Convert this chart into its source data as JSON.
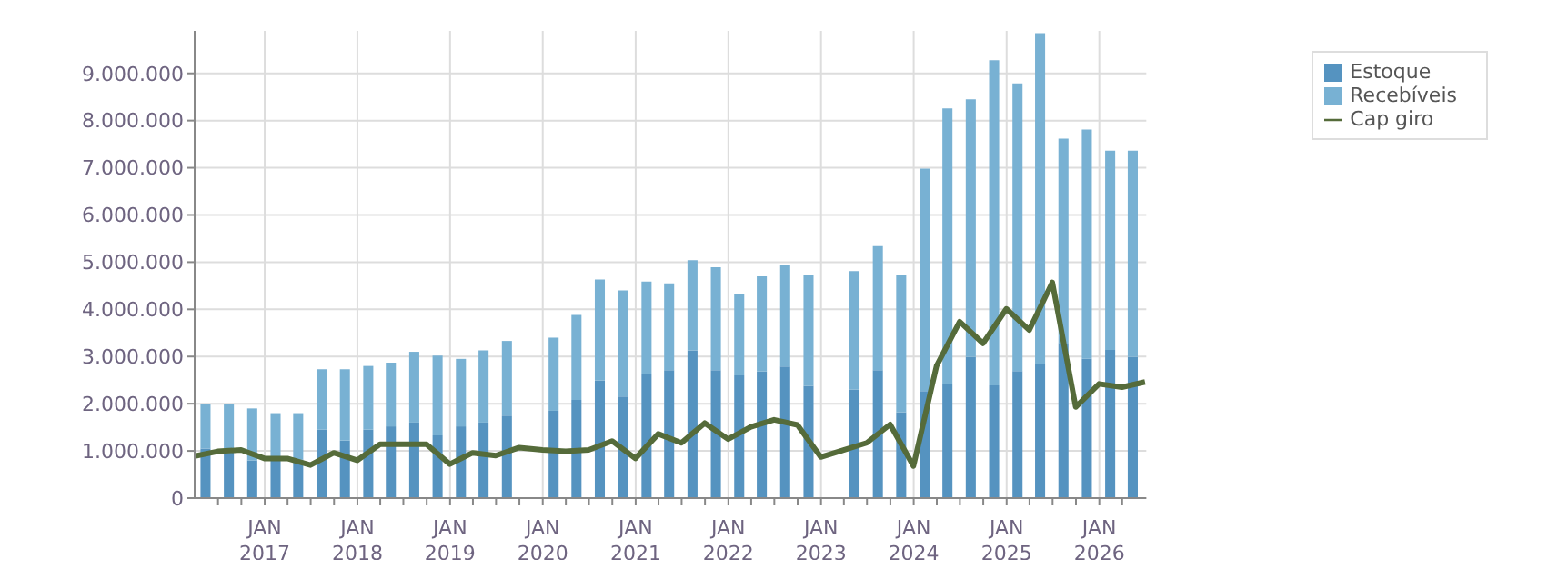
{
  "chart_data": {
    "type": "bar",
    "stacked": true,
    "x": [
      "2016-05-15",
      "2016-08-15",
      "2016-11-15",
      "2017-02-15",
      "2017-05-15",
      "2017-08-15",
      "2017-11-15",
      "2018-02-15",
      "2018-05-15",
      "2018-08-15",
      "2018-11-15",
      "2019-02-15",
      "2019-05-15",
      "2019-08-15",
      "2019-11-15",
      "2020-02-15",
      "2020-05-15",
      "2020-08-15",
      "2020-11-15",
      "2021-02-15",
      "2021-05-15",
      "2021-08-15",
      "2021-11-15",
      "2022-02-15",
      "2022-05-15",
      "2022-08-15",
      "2022-11-15",
      "2023-02-15",
      "2023-05-15",
      "2023-08-15",
      "2023-11-15",
      "2024-02-15",
      "2024-05-15",
      "2024-08-15",
      "2024-11-15",
      "2025-02-15",
      "2025-05-15",
      "2025-08-15",
      "2025-11-15",
      "2026-02-15",
      "2026-05-15"
    ],
    "series": [
      {
        "name": "Estoque",
        "color": "#5593c0",
        "values": [
          1050000,
          1050000,
          800000,
          800000,
          820000,
          1450000,
          1220000,
          1450000,
          1520000,
          1600000,
          1330000,
          1520000,
          1600000,
          1750000,
          null,
          1850000,
          2080000,
          2490000,
          2150000,
          2640000,
          2710000,
          3130000,
          2710000,
          2600000,
          2680000,
          2790000,
          2380000,
          null,
          2300000,
          2710000,
          1820000,
          2270000,
          2420000,
          2990000,
          2390000,
          2690000,
          2840000,
          3290000,
          2950000,
          3140000,
          2990000
        ]
      },
      {
        "name": "Recebíveis",
        "color": "#78b1d3",
        "values": [
          950000,
          950000,
          1100000,
          1000000,
          980000,
          1280000,
          1510000,
          1350000,
          1350000,
          1500000,
          1690000,
          1430000,
          1530000,
          1580000,
          null,
          1550000,
          1800000,
          2140000,
          2250000,
          1950000,
          1840000,
          1910000,
          2180000,
          1730000,
          2020000,
          2140000,
          2360000,
          null,
          2510000,
          2630000,
          2900000,
          4710000,
          5840000,
          5460000,
          6890000,
          6100000,
          7010000,
          4330000,
          4860000,
          4220000,
          4370000
        ]
      },
      {
        "name": "Cap giro",
        "type": "line",
        "color": "#556b3a",
        "x": [
          "2016-03-31",
          "2016-06-30",
          "2016-09-30",
          "2016-12-31",
          "2017-03-31",
          "2017-06-30",
          "2017-09-30",
          "2017-12-31",
          "2018-03-31",
          "2018-06-30",
          "2018-09-30",
          "2018-12-31",
          "2019-03-31",
          "2019-06-30",
          "2019-09-30",
          "2019-12-31",
          "2020-03-31",
          "2020-06-30",
          "2020-09-30",
          "2020-12-31",
          "2021-03-31",
          "2021-06-30",
          "2021-09-30",
          "2021-12-31",
          "2022-03-31",
          "2022-06-30",
          "2022-09-30",
          "2022-12-31",
          "2023-03-31",
          "2023-06-30",
          "2023-09-30",
          "2023-12-31",
          "2024-03-31",
          "2024-06-30",
          "2024-09-30",
          "2024-12-31",
          "2025-03-31",
          "2025-06-30",
          "2025-09-30",
          "2025-12-31",
          "2026-03-31",
          "2026-06-30"
        ],
        "values": [
          890000,
          990000,
          1020000,
          840000,
          840000,
          700000,
          960000,
          800000,
          1140000,
          1140000,
          1140000,
          720000,
          960000,
          900000,
          1070000,
          1020000,
          990000,
          1020000,
          1210000,
          840000,
          1360000,
          1170000,
          1590000,
          1250000,
          1510000,
          1660000,
          1550000,
          870000,
          1020000,
          1170000,
          1560000,
          680000,
          2800000,
          3740000,
          3280000,
          4010000,
          3560000,
          4570000,
          1930000,
          2420000,
          2350000,
          2460000
        ]
      }
    ],
    "xlim": [
      "2016-03-31",
      "2026-07-05"
    ],
    "xticks": [
      {
        "value": "2016-07-01",
        "label": null
      },
      {
        "value": "2016-10-01",
        "label": null
      },
      {
        "value": "2017-01-01",
        "label": "JAN\n2017"
      },
      {
        "value": "2017-04-01",
        "label": null
      },
      {
        "value": "2017-07-01",
        "label": null
      },
      {
        "value": "2017-10-01",
        "label": null
      },
      {
        "value": "2018-01-01",
        "label": "JAN\n2018"
      },
      {
        "value": "2018-04-01",
        "label": null
      },
      {
        "value": "2018-07-01",
        "label": null
      },
      {
        "value": "2018-10-01",
        "label": null
      },
      {
        "value": "2019-01-01",
        "label": "JAN\n2019"
      },
      {
        "value": "2019-04-01",
        "label": null
      },
      {
        "value": "2019-07-01",
        "label": null
      },
      {
        "value": "2019-10-01",
        "label": null
      },
      {
        "value": "2020-01-01",
        "label": "JAN\n2020"
      },
      {
        "value": "2020-04-01",
        "label": null
      },
      {
        "value": "2020-07-01",
        "label": null
      },
      {
        "value": "2020-10-01",
        "label": null
      },
      {
        "value": "2021-01-01",
        "label": "JAN\n2021"
      },
      {
        "value": "2021-04-01",
        "label": null
      },
      {
        "value": "2021-07-01",
        "label": null
      },
      {
        "value": "2021-10-01",
        "label": null
      },
      {
        "value": "2022-01-01",
        "label": "JAN\n2022"
      },
      {
        "value": "2022-04-01",
        "label": null
      },
      {
        "value": "2022-07-01",
        "label": null
      },
      {
        "value": "2022-10-01",
        "label": null
      },
      {
        "value": "2023-01-01",
        "label": "JAN\n2023"
      },
      {
        "value": "2023-04-01",
        "label": null
      },
      {
        "value": "2023-07-01",
        "label": null
      },
      {
        "value": "2023-10-01",
        "label": null
      },
      {
        "value": "2024-01-01",
        "label": "JAN\n2024"
      },
      {
        "value": "2024-04-01",
        "label": null
      },
      {
        "value": "2024-07-01",
        "label": null
      },
      {
        "value": "2024-10-01",
        "label": null
      },
      {
        "value": "2025-01-01",
        "label": "JAN\n2025"
      },
      {
        "value": "2025-04-01",
        "label": null
      },
      {
        "value": "2025-07-01",
        "label": null
      },
      {
        "value": "2025-10-01",
        "label": null
      },
      {
        "value": "2026-01-01",
        "label": "JAN\n2026"
      },
      {
        "value": "2026-04-01",
        "label": null
      }
    ],
    "ylim": [
      0,
      9900000
    ],
    "yticks": [
      0,
      {
        "value": 1000000,
        "label": "1.000.000"
      },
      {
        "value": 2000000,
        "label": "2.000.000"
      },
      {
        "value": 3000000,
        "label": "3.000.000"
      },
      {
        "value": 4000000,
        "label": "4.000.000"
      },
      {
        "value": 5000000,
        "label": "5.000.000"
      },
      {
        "value": 6000000,
        "label": "6.000.000"
      },
      {
        "value": 7000000,
        "label": "7.000.000"
      },
      {
        "value": 8000000,
        "label": "8.000.000"
      },
      {
        "value": 9000000,
        "label": "9.000.000"
      }
    ],
    "grid": true,
    "legend": "top right",
    "marker": "none",
    "line_style": "solid"
  }
}
